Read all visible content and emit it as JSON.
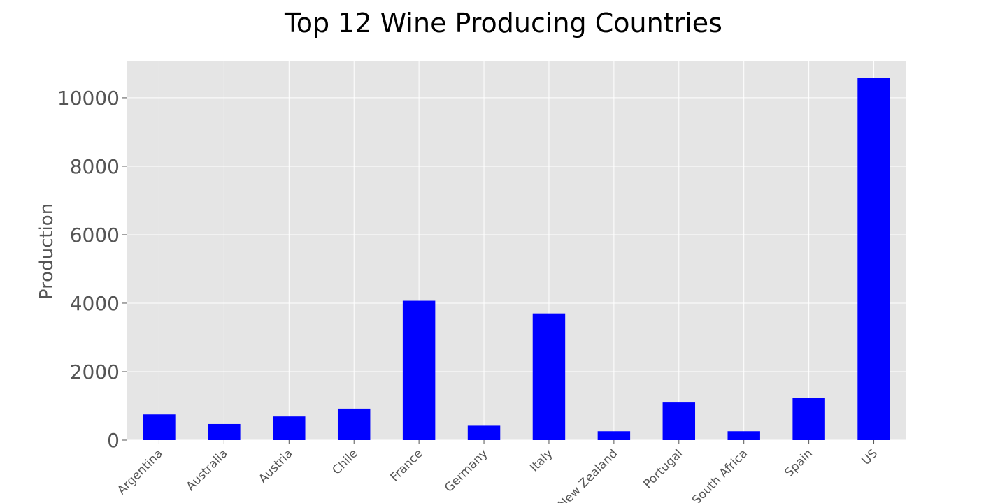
{
  "chart_data": {
    "type": "bar",
    "title": "Top 12 Wine Producing Countries",
    "xlabel": "",
    "ylabel": "Production",
    "categories": [
      "Argentina",
      "Australia",
      "Austria",
      "Chile",
      "France",
      "Germany",
      "Italy",
      "New Zealand",
      "Portugal",
      "South Africa",
      "Spain",
      "US"
    ],
    "values": [
      750,
      470,
      690,
      920,
      4070,
      420,
      3700,
      260,
      1100,
      260,
      1240,
      10570
    ],
    "ylim": [
      0,
      11080
    ],
    "yticks": [
      0,
      2000,
      4000,
      6000,
      8000,
      10000
    ],
    "grid": true,
    "legend": "none",
    "colors": {
      "bar": "#0000ff",
      "plot_background": "#e5e5e5",
      "grid": "#ffffff",
      "tick_text": "#555555"
    }
  }
}
